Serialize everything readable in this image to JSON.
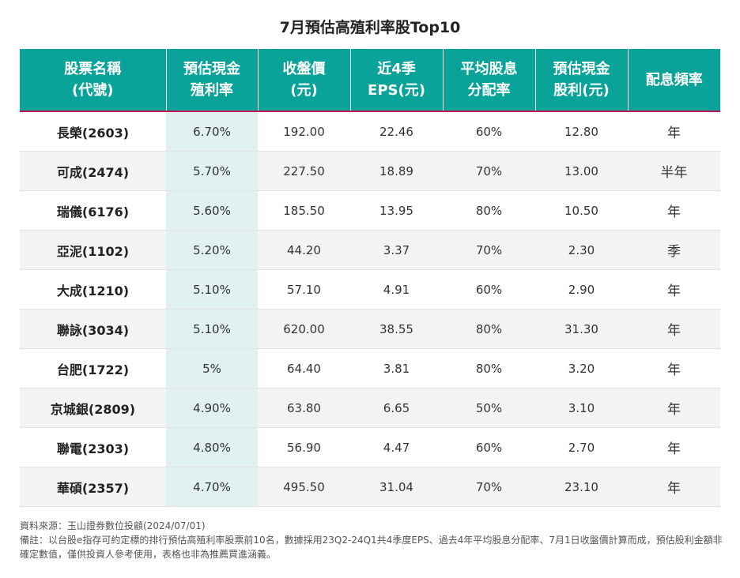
{
  "title": "7月預估高殖利率股Top10",
  "headers": [
    [
      "股票名稱",
      "(代號)"
    ],
    [
      "預估現金",
      "殖利率"
    ],
    [
      "收盤價",
      "(元)"
    ],
    [
      "近4季",
      "EPS(元)"
    ],
    [
      "平均股息",
      "分配率"
    ],
    [
      "預估現金",
      "股利(元)"
    ],
    [
      "配息頻率"
    ]
  ],
  "rows": [
    {
      "name": "長榮(2603)",
      "yield": "6.70%",
      "price": "192.00",
      "eps": "22.46",
      "payout": "60%",
      "dividend": "12.80",
      "freq": "年"
    },
    {
      "name": "可成(2474)",
      "yield": "5.70%",
      "price": "227.50",
      "eps": "18.89",
      "payout": "70%",
      "dividend": "13.00",
      "freq": "半年"
    },
    {
      "name": "瑞儀(6176)",
      "yield": "5.60%",
      "price": "185.50",
      "eps": "13.95",
      "payout": "80%",
      "dividend": "10.50",
      "freq": "年"
    },
    {
      "name": "亞泥(1102)",
      "yield": "5.20%",
      "price": "44.20",
      "eps": "3.37",
      "payout": "70%",
      "dividend": "2.30",
      "freq": "季"
    },
    {
      "name": "大成(1210)",
      "yield": "5.10%",
      "price": "57.10",
      "eps": "4.91",
      "payout": "60%",
      "dividend": "2.90",
      "freq": "年"
    },
    {
      "name": "聯詠(3034)",
      "yield": "5.10%",
      "price": "620.00",
      "eps": "38.55",
      "payout": "80%",
      "dividend": "31.30",
      "freq": "年"
    },
    {
      "name": "台肥(1722)",
      "yield": "5%",
      "price": "64.40",
      "eps": "3.81",
      "payout": "80%",
      "dividend": "3.20",
      "freq": "年"
    },
    {
      "name": "京城銀(2809)",
      "yield": "4.90%",
      "price": "63.80",
      "eps": "6.65",
      "payout": "50%",
      "dividend": "3.10",
      "freq": "年"
    },
    {
      "name": "聯電(2303)",
      "yield": "4.80%",
      "price": "56.90",
      "eps": "4.47",
      "payout": "60%",
      "dividend": "2.70",
      "freq": "年"
    },
    {
      "name": "華碩(2357)",
      "yield": "4.70%",
      "price": "495.50",
      "eps": "31.04",
      "payout": "70%",
      "dividend": "23.10",
      "freq": "年"
    }
  ],
  "footer": {
    "source": "資料來源：玉山證券數位投顧(2024/07/01)",
    "note": "備註：以台股e指存可約定標的排行預估高殖利率股票前10名，數據採用23Q2-24Q1共4季度EPS、過去4年平均股息分配率、7月1日收盤價計算而成，預估股利金額非確定數值，僅供投資人參考使用，表格也非為推薦買進涵義。"
  },
  "colors": {
    "header_bg": "#0aa39a",
    "header_underline": "#c0185a",
    "yield_column_bg": "#e1f1ef"
  }
}
